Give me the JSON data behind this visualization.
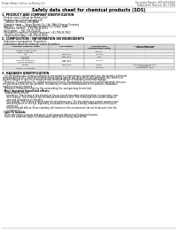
{
  "bg_color": "#ffffff",
  "header_left": "Product Name: Lithium Ion Battery Cell",
  "header_right_line1": "Document Number: SDS-049-00019",
  "header_right_line2": "Established / Revision: Dec.7.2016",
  "title": "Safety data sheet for chemical products (SDS)",
  "section1_title": "1. PRODUCT AND COMPANY IDENTIFICATION",
  "section1_items": [
    "· Product name: Lithium Ion Battery Cell",
    "· Product code: Cylindrical-type cell",
    "   (18650U, 26F/850U, 26F/850A)",
    "· Company name:    Sanyo Electric Co., Ltd., Mobile Energy Company",
    "· Address:    2001 Kamishinden, Sumoto-City, Hyogo, Japan",
    "· Telephone number:    +81-799-26-4111",
    "· Fax number:    +81-799-26-4129",
    "· Emergency telephone number (daytime): +81-799-26-3562",
    "   (Night and holiday): +81-799-26-4124"
  ],
  "section2_title": "2. COMPOSITION / INFORMATION ON INGREDIENTS",
  "section2_sub": "· Substance or preparation: Preparation",
  "section2_sub2": "· Information about the chemical nature of product:",
  "table_headers": [
    "Common chemical name",
    "CAS number",
    "Concentration /\nConcentration range",
    "Classification and\nhazard labeling"
  ],
  "table_rows": [
    [
      "Lithium cobalt oxide\n(LiMn-Co-Ni-O2)",
      "-",
      "30-60%",
      "-"
    ],
    [
      "Iron",
      "7439-89-6",
      "10-20%",
      "-"
    ],
    [
      "Aluminum",
      "7429-90-5",
      "2-5%",
      "-"
    ],
    [
      "Graphite\n(Used in graphite+)\n(or No graphite-)",
      "7782-42-5\n7782-44-7",
      "10-20%",
      "-"
    ],
    [
      "Copper",
      "7440-50-8",
      "5-15%",
      "Sensitization of the skin\ngroup No.2"
    ],
    [
      "Organic electrolyte",
      "-",
      "10-20%",
      "Inflammable liquid"
    ]
  ],
  "section3_title": "3. HAZARDS IDENTIFICATION",
  "section3_para1": [
    "   For the battery cell, chemical substances are stored in a hermetically-sealed steel case, designed to withstand",
    "temperatures of 70°C and tensile-compression during normal use. As a result, during normal use, there is no",
    "physical danger of ignition or explosion and therefore danger of hazardous materials leakage.",
    "   However, if exposed to a fire, added mechanical shocks, decomposed, short-circuit within abnormal miss-use,",
    "the gas release vent will be operated. The battery cell case will be breached of fire-particles, hazardous",
    "materials may be released.",
    "   Moreover, if heated strongly by the surrounding fire, soot gas may be emitted."
  ],
  "bullet1": "· Most important hazard and effects:",
  "sub_bullet1": "   Human health effects:",
  "sub_lines1": [
    "      Inhalation: The release of the electrolyte has an anesthesia action and stimulates in respiratory tract.",
    "      Skin contact: The release of the electrolyte stimulates a skin. The electrolyte skin contact causes a",
    "      sore and stimulation on the skin.",
    "      Eye contact: The release of the electrolyte stimulates eyes. The electrolyte eye contact causes a sore",
    "      and stimulation on the eye. Especially, a substance that causes a strong inflammation of the eye is",
    "      contained.",
    "      Environmental effects: Since a battery cell remains in the environment, do not throw out it into the",
    "      environment."
  ],
  "bullet2": "· Specific hazards:",
  "sub_lines2": [
    "   If the electrolyte contacts with water, it will generate detrimental hydrogen fluoride.",
    "   Since the used electrolyte is inflammable liquid, do not bring close to fire."
  ]
}
